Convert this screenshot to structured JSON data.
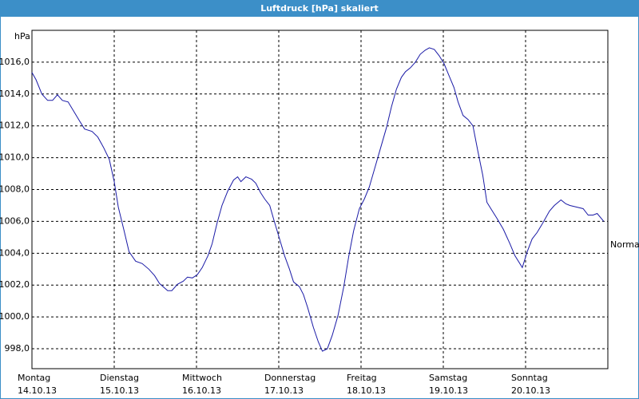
{
  "chart_data": {
    "type": "line",
    "title": "Luftdruck [hPa] skaliert",
    "y_unit": "hPa",
    "series": [
      {
        "name": "Normal",
        "color": "#1a1aa6",
        "x": [
          0,
          0.05,
          0.12,
          0.19,
          0.25,
          0.31,
          0.37,
          0.44,
          0.51,
          0.58,
          0.64,
          0.73,
          0.8,
          0.87,
          0.94,
          1.0,
          1.05,
          1.12,
          1.18,
          1.26,
          1.34,
          1.42,
          1.49,
          1.55,
          1.65,
          1.7,
          1.77,
          1.84,
          1.89,
          1.95,
          2.01,
          2.07,
          2.14,
          2.19,
          2.25,
          2.31,
          2.38,
          2.45,
          2.5,
          2.54,
          2.6,
          2.67,
          2.72,
          2.78,
          2.83,
          2.89,
          2.94,
          3.01,
          3.07,
          3.13,
          3.18,
          3.25,
          3.3,
          3.35,
          3.42,
          3.48,
          3.53,
          3.59,
          3.65,
          3.72,
          3.79,
          3.85,
          3.91,
          3.98,
          4.04,
          4.1,
          4.17,
          4.24,
          4.31,
          4.37,
          4.43,
          4.49,
          4.54,
          4.6,
          4.66,
          4.72,
          4.78,
          4.83,
          4.89,
          4.95,
          5.01,
          5.07,
          5.13,
          5.18,
          5.24,
          5.3,
          5.36,
          5.42,
          5.48,
          5.53,
          5.59,
          5.65,
          5.73,
          5.81,
          5.87,
          5.96,
          6.02,
          6.08,
          6.14,
          6.21,
          6.29,
          6.35,
          6.43,
          6.49,
          6.54,
          6.62,
          6.7,
          6.76,
          6.82,
          6.87,
          6.95
        ],
        "values": [
          1015.35,
          1014.9,
          1014.0,
          1013.6,
          1013.6,
          1013.95,
          1013.6,
          1013.5,
          1012.9,
          1012.3,
          1011.8,
          1011.65,
          1011.3,
          1010.65,
          1009.9,
          1008.5,
          1006.9,
          1005.4,
          1004.1,
          1003.5,
          1003.35,
          1003.0,
          1002.6,
          1002.1,
          1001.65,
          1001.65,
          1002.05,
          1002.25,
          1002.5,
          1002.45,
          1002.65,
          1003.1,
          1003.85,
          1004.6,
          1005.9,
          1007.0,
          1007.9,
          1008.6,
          1008.8,
          1008.5,
          1008.8,
          1008.65,
          1008.4,
          1007.8,
          1007.4,
          1007.0,
          1006.1,
          1004.9,
          1003.85,
          1003.0,
          1002.2,
          1001.9,
          1001.4,
          1000.6,
          999.35,
          998.45,
          997.85,
          998.0,
          998.85,
          1000.1,
          1001.9,
          1003.8,
          1005.4,
          1006.8,
          1007.4,
          1008.15,
          1009.4,
          1010.65,
          1011.9,
          1013.2,
          1014.3,
          1015.05,
          1015.4,
          1015.65,
          1016.0,
          1016.5,
          1016.75,
          1016.9,
          1016.8,
          1016.4,
          1015.9,
          1015.15,
          1014.4,
          1013.5,
          1012.65,
          1012.4,
          1012.0,
          1010.4,
          1008.9,
          1007.2,
          1006.7,
          1006.2,
          1005.5,
          1004.6,
          1003.85,
          1003.1,
          1004.1,
          1004.9,
          1005.3,
          1005.9,
          1006.65,
          1007.0,
          1007.35,
          1007.1,
          1007.0,
          1006.9,
          1006.8,
          1006.4,
          1006.4,
          1006.5,
          1006.0
        ]
      }
    ],
    "xlim": [
      0,
      7
    ],
    "xticks": [
      {
        "value": 0,
        "label": "Montag",
        "date": "14.10.13"
      },
      {
        "value": 1,
        "label": "Dienstag",
        "date": "15.10.13"
      },
      {
        "value": 2,
        "label": "Mittwoch",
        "date": "16.10.13"
      },
      {
        "value": 3,
        "label": "Donnerstag",
        "date": "17.10.13"
      },
      {
        "value": 4,
        "label": "Freitag",
        "date": "18.10.13"
      },
      {
        "value": 5,
        "label": "Samstag",
        "date": "19.10.13"
      },
      {
        "value": 6,
        "label": "Sonntag",
        "date": "20.10.13"
      }
    ],
    "ylim": [
      996.75,
      1018
    ],
    "yticks": [
      {
        "value": 998,
        "label": "998,0"
      },
      {
        "value": 1000,
        "label": "1000,0"
      },
      {
        "value": 1002,
        "label": "1002,0"
      },
      {
        "value": 1004,
        "label": "1004,0"
      },
      {
        "value": 1006,
        "label": "1006,0"
      },
      {
        "value": 1008,
        "label": "1008,0"
      },
      {
        "value": 1010,
        "label": "1010,0"
      },
      {
        "value": 1012,
        "label": "1012,0"
      },
      {
        "value": 1014,
        "label": "1014,0"
      },
      {
        "value": 1016,
        "label": "1016,0"
      }
    ],
    "grid": true
  }
}
